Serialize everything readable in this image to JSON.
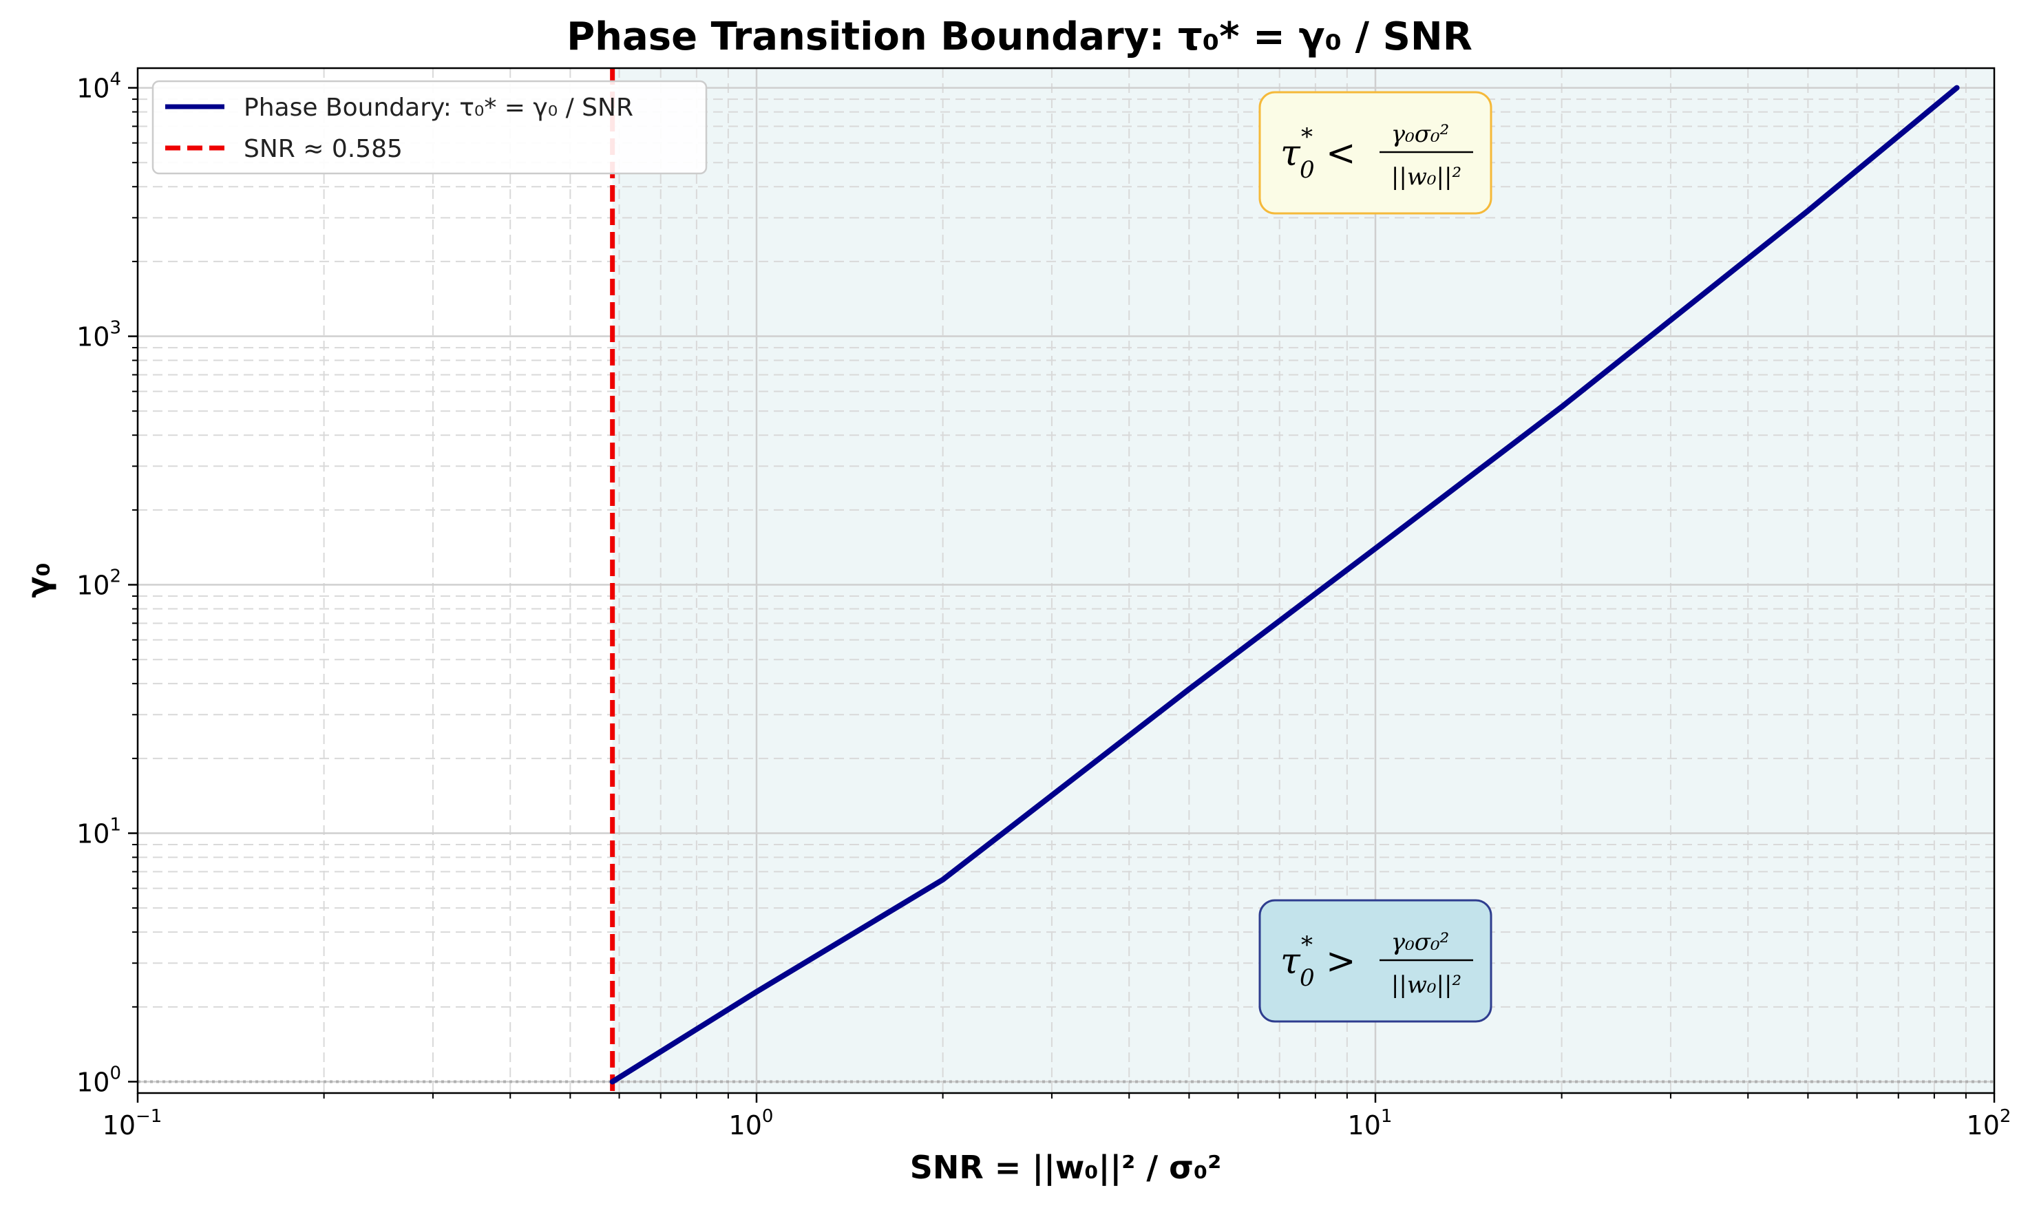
{
  "chart_data": {
    "type": "line",
    "title": "Phase Transition Boundary: τ₀* = γ₀ / SNR",
    "xlabel": "SNR = ||w₀||² / σ₀²",
    "ylabel": "γ₀",
    "xscale": "log",
    "yscale": "log",
    "xlim": [
      0.1,
      100
    ],
    "ylim": [
      0.9,
      12000
    ],
    "grid": true,
    "legend_position": "top-left",
    "x_ticks": [
      {
        "base": "10",
        "exp": "−1",
        "value": 0.1
      },
      {
        "base": "10",
        "exp": "0",
        "value": 1
      },
      {
        "base": "10",
        "exp": "1",
        "value": 10
      },
      {
        "base": "10",
        "exp": "2",
        "value": 100
      }
    ],
    "y_ticks": [
      {
        "base": "10",
        "exp": "0",
        "value": 1
      },
      {
        "base": "10",
        "exp": "1",
        "value": 10
      },
      {
        "base": "10",
        "exp": "2",
        "value": 100
      },
      {
        "base": "10",
        "exp": "3",
        "value": 1000
      },
      {
        "base": "10",
        "exp": "4",
        "value": 10000
      }
    ],
    "series": [
      {
        "name": "Phase Boundary: τ₀* = γ₀ / SNR",
        "style": "solid",
        "color": "#00008b",
        "x": [
          0.585,
          1.0,
          2.0,
          5.0,
          10.0,
          20.0,
          50.0,
          87.0
        ],
        "y": [
          1.0,
          2.3,
          6.5,
          38,
          140,
          520,
          3200,
          10000
        ]
      },
      {
        "name": "SNR ≈ 0.585",
        "style": "dashed",
        "color": "#ee0000",
        "x_value": 0.585
      }
    ],
    "reference_line": {
      "y": 1,
      "style": "dotted",
      "color": "#b0b0b0"
    },
    "shaded_region": {
      "x_from": 0.585,
      "x_to": 100,
      "color": "#eef6f7"
    },
    "annotations": [
      {
        "id": "upper",
        "lhs": "τ",
        "sub": "0",
        "sup": "*",
        "op": "<",
        "numerator": "γ₀σ₀²",
        "denominator": "||w₀||²",
        "fill": "#fbfce6",
        "border": "#f5b93a"
      },
      {
        "id": "lower",
        "lhs": "τ",
        "sub": "0",
        "sup": "*",
        "op": ">",
        "numerator": "γ₀σ₀²",
        "denominator": "||w₀||²",
        "fill": "#c3e3eb",
        "border": "#2e3d8f"
      }
    ]
  }
}
